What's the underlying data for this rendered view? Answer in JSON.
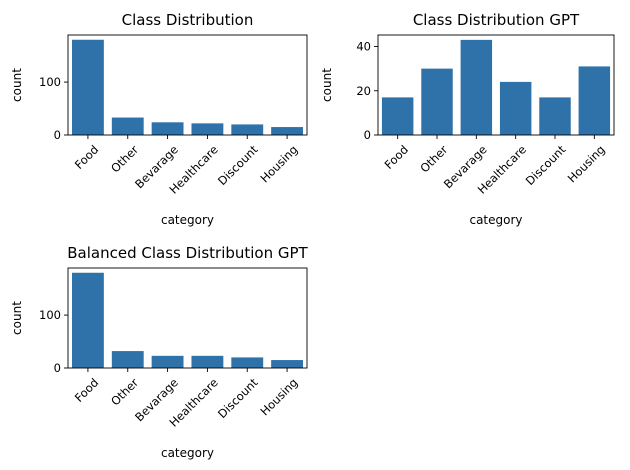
{
  "chart_data": [
    {
      "type": "bar",
      "title": "Class Distribution",
      "xlabel": "category",
      "ylabel": "count",
      "categories": [
        "Food",
        "Other",
        "Bevarage",
        "Healthcare",
        "Discount",
        "Housing"
      ],
      "values": [
        180,
        33,
        24,
        22,
        20,
        15
      ],
      "ylim": [
        0,
        189
      ],
      "yticks": [
        0,
        100
      ],
      "color": "#2f72aa",
      "grid": false
    },
    {
      "type": "bar",
      "title": "Class Distribution GPT",
      "xlabel": "category",
      "ylabel": "count",
      "categories": [
        "Food",
        "Other",
        "Bevarage",
        "Healthcare",
        "Discount",
        "Housing"
      ],
      "values": [
        17,
        30,
        43,
        24,
        17,
        31
      ],
      "ylim": [
        0,
        45.2
      ],
      "yticks": [
        0,
        20,
        40
      ],
      "color": "#2f72aa",
      "grid": false
    },
    {
      "type": "bar",
      "title": "Balanced Class Distribution GPT",
      "xlabel": "category",
      "ylabel": "count",
      "categories": [
        "Food",
        "Other",
        "Bevarage",
        "Healthcare",
        "Discount",
        "Housing"
      ],
      "values": [
        180,
        32,
        23,
        23,
        20,
        15
      ],
      "ylim": [
        0,
        189
      ],
      "yticks": [
        0,
        100
      ],
      "color": "#2f72aa",
      "grid": false
    }
  ]
}
